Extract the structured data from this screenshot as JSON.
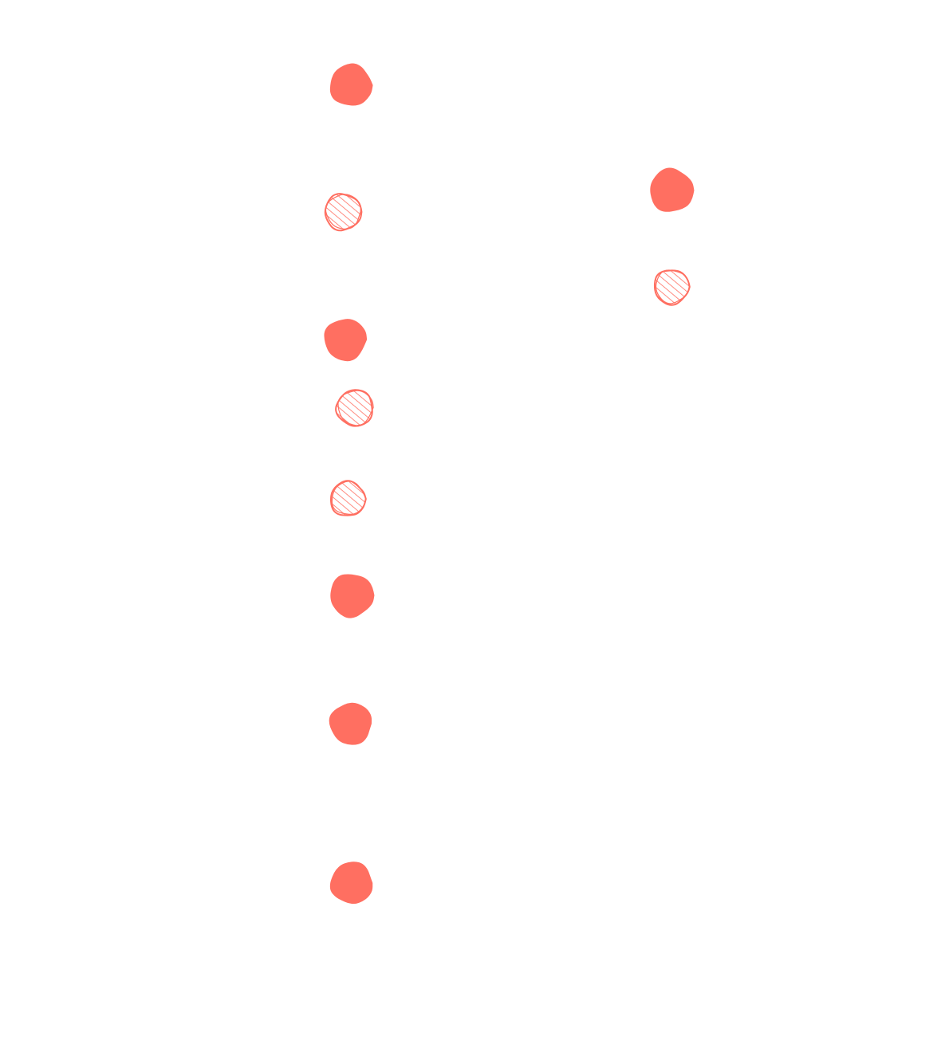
{
  "canvas": {
    "background": "#ffffff"
  },
  "colors": {
    "accent": "#ff6f61",
    "stroke": "#ff6f61"
  },
  "legend": [],
  "dots": [
    {
      "id": "dot-1",
      "style": "solid"
    },
    {
      "id": "dot-2",
      "style": "hatched"
    },
    {
      "id": "dot-3",
      "style": "solid"
    },
    {
      "id": "dot-4",
      "style": "hatched"
    },
    {
      "id": "dot-5",
      "style": "hatched"
    },
    {
      "id": "dot-6",
      "style": "solid"
    },
    {
      "id": "dot-7",
      "style": "solid"
    },
    {
      "id": "dot-8",
      "style": "solid"
    },
    {
      "id": "dot-9",
      "style": "solid"
    },
    {
      "id": "dot-10",
      "style": "hatched"
    }
  ]
}
